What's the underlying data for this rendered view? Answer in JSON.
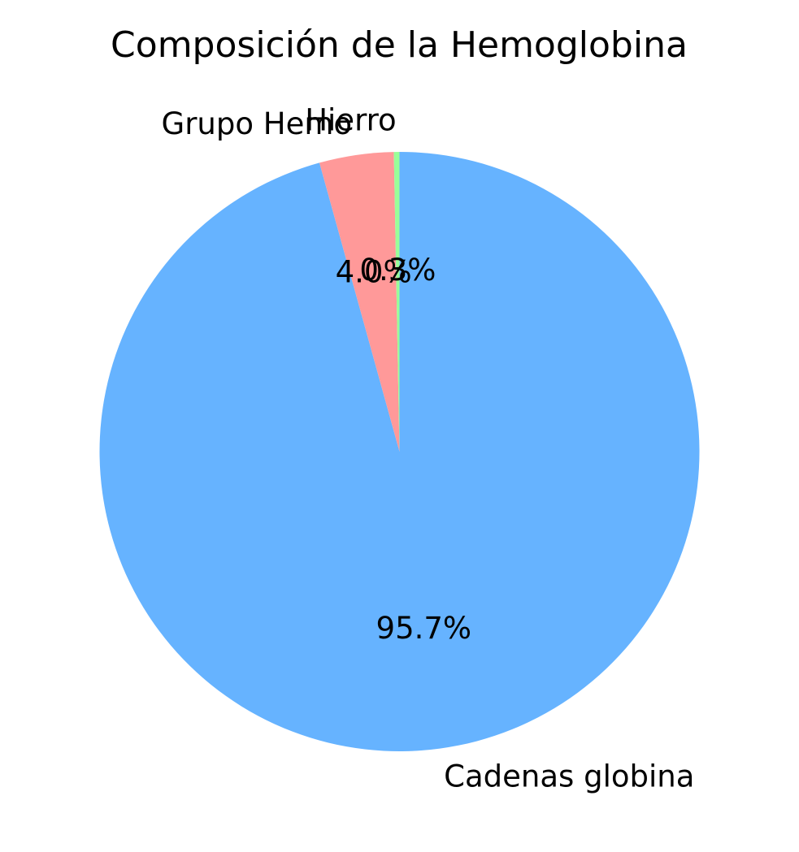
{
  "chart_data": {
    "type": "pie",
    "title": "Composición de la Hemoglobina",
    "start_angle_deg": 90,
    "direction": "clockwise",
    "slices": [
      {
        "label": "Cadenas globina",
        "value": 95.7,
        "pct_label": "95.7%",
        "color": "#66b3ff"
      },
      {
        "label": "Grupo Hemo",
        "value": 4.0,
        "pct_label": "4.0%",
        "color": "#ff9999"
      },
      {
        "label": "Hierro",
        "value": 0.3,
        "pct_label": "0.3%",
        "color": "#99ff99"
      }
    ]
  }
}
